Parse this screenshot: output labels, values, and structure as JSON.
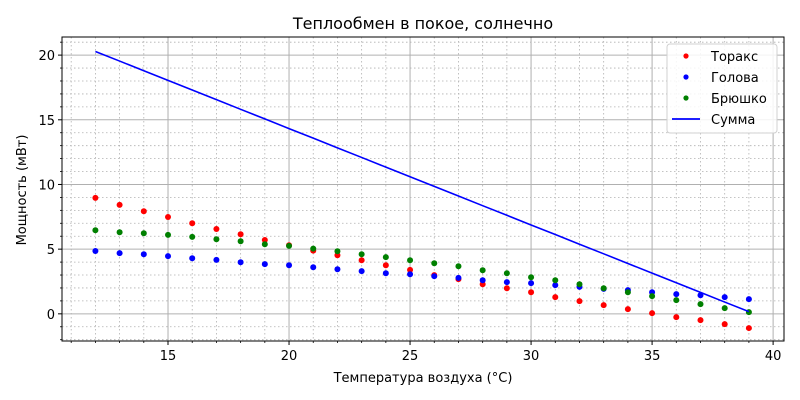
{
  "chart_data": {
    "type": "scatter",
    "title": "Теплообмен в покое, солнечно",
    "xlabel": "Температура воздуха (°C)",
    "ylabel": "Мощность (мВт)",
    "xlim": [
      10.62,
      40.45
    ],
    "ylim": [
      -2.1,
      21.4
    ],
    "xticks": [
      15,
      20,
      25,
      30,
      35,
      40
    ],
    "yticks": [
      0,
      5,
      10,
      15,
      20
    ],
    "grid": true,
    "minor_grid": true,
    "legend_position": "upper right",
    "x": [
      12,
      13,
      14,
      15,
      16,
      17,
      18,
      19,
      20,
      21,
      22,
      23,
      24,
      25,
      26,
      27,
      28,
      29,
      30,
      31,
      32,
      33,
      34,
      35,
      36,
      37,
      38,
      39
    ],
    "series": [
      {
        "name": "Торакс",
        "kind": "scatter",
        "color": "#ff0000",
        "values": [
          8.96,
          8.42,
          7.93,
          7.49,
          7.0,
          6.56,
          6.15,
          5.71,
          5.3,
          4.89,
          4.53,
          4.14,
          3.76,
          3.4,
          2.99,
          2.68,
          2.29,
          1.98,
          1.67,
          1.29,
          0.98,
          0.67,
          0.36,
          0.05,
          -0.25,
          -0.49,
          -0.8,
          -1.1
        ]
      },
      {
        "name": "Голова",
        "kind": "scatter",
        "color": "#0000ff",
        "values": [
          4.86,
          4.69,
          4.61,
          4.46,
          4.3,
          4.17,
          3.99,
          3.84,
          3.76,
          3.6,
          3.45,
          3.3,
          3.14,
          3.06,
          2.91,
          2.78,
          2.6,
          2.45,
          2.37,
          2.22,
          2.08,
          1.93,
          1.83,
          1.67,
          1.52,
          1.44,
          1.29,
          1.14
        ]
      },
      {
        "name": "Брюшко",
        "kind": "scatter",
        "color": "#008000",
        "values": [
          6.46,
          6.31,
          6.23,
          6.1,
          5.95,
          5.77,
          5.61,
          5.38,
          5.25,
          5.04,
          4.84,
          4.61,
          4.38,
          4.14,
          3.91,
          3.68,
          3.37,
          3.14,
          2.83,
          2.6,
          2.29,
          1.98,
          1.67,
          1.37,
          1.06,
          0.75,
          0.44,
          0.13
        ]
      },
      {
        "name": "Сумма",
        "kind": "line",
        "color": "#0000ff",
        "values": [
          20.28,
          19.54,
          18.79,
          18.05,
          17.3,
          16.56,
          15.81,
          15.07,
          14.32,
          13.58,
          12.83,
          12.09,
          11.34,
          10.6,
          9.85,
          9.11,
          8.36,
          7.62,
          6.87,
          6.13,
          5.38,
          4.64,
          3.89,
          3.15,
          2.4,
          1.66,
          0.91,
          0.17
        ]
      }
    ]
  }
}
